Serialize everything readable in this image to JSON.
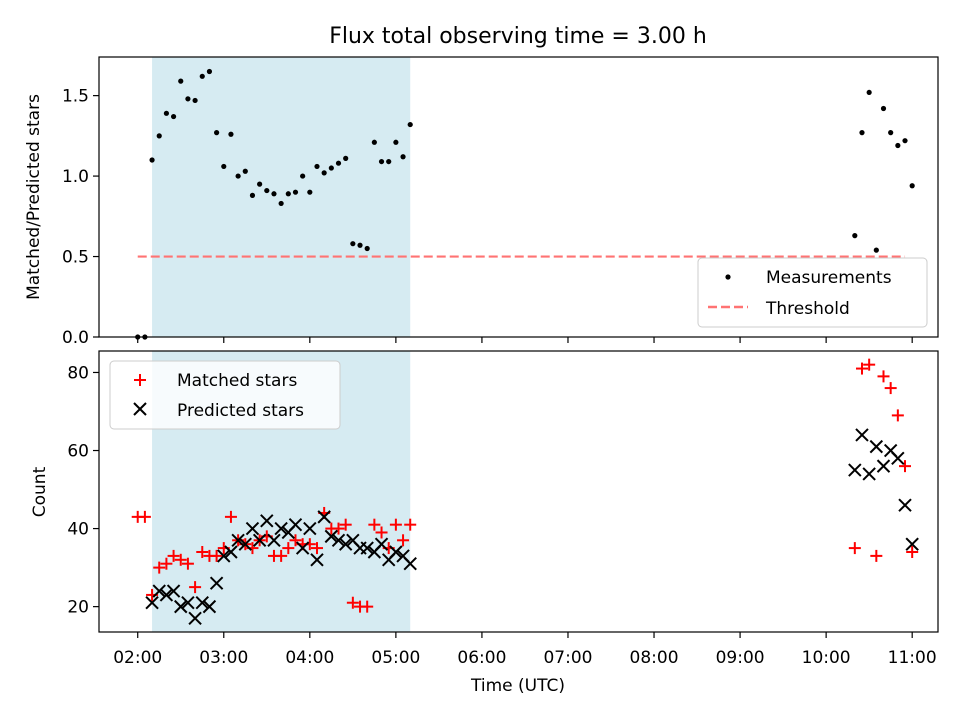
{
  "figure": {
    "title": "Flux total observing time = 3.00 h"
  },
  "chart_data": [
    {
      "type": "scatter",
      "title": "Flux total observing time = 3.00 h",
      "xlabel": "",
      "ylabel": "Matched/Predicted stars",
      "xlim": [
        "01:33",
        "11:18"
      ],
      "ylim": [
        0,
        1.74
      ],
      "yticks": [
        "0.0",
        "0.5",
        "1.0",
        "1.5"
      ],
      "shaded_span": [
        "02:10",
        "05:10"
      ],
      "legend_position": "lower right",
      "series": [
        {
          "name": "Measurements",
          "marker": "dot",
          "color": "#000000",
          "points": [
            [
              "02:00",
              0.0
            ],
            [
              "02:05",
              0.0
            ],
            [
              "02:10",
              1.1
            ],
            [
              "02:15",
              1.25
            ],
            [
              "02:20",
              1.39
            ],
            [
              "02:25",
              1.37
            ],
            [
              "02:30",
              1.59
            ],
            [
              "02:35",
              1.48
            ],
            [
              "02:40",
              1.47
            ],
            [
              "02:45",
              1.62
            ],
            [
              "02:50",
              1.65
            ],
            [
              "02:55",
              1.27
            ],
            [
              "03:00",
              1.06
            ],
            [
              "03:05",
              1.26
            ],
            [
              "03:10",
              1.0
            ],
            [
              "03:15",
              1.03
            ],
            [
              "03:20",
              0.88
            ],
            [
              "03:25",
              0.95
            ],
            [
              "03:30",
              0.91
            ],
            [
              "03:35",
              0.89
            ],
            [
              "03:40",
              0.83
            ],
            [
              "03:45",
              0.89
            ],
            [
              "03:50",
              0.9
            ],
            [
              "03:55",
              1.0
            ],
            [
              "04:00",
              0.9
            ],
            [
              "04:05",
              1.06
            ],
            [
              "04:10",
              1.02
            ],
            [
              "04:15",
              1.05
            ],
            [
              "04:20",
              1.08
            ],
            [
              "04:25",
              1.11
            ],
            [
              "04:30",
              0.58
            ],
            [
              "04:35",
              0.57
            ],
            [
              "04:40",
              0.55
            ],
            [
              "04:45",
              1.21
            ],
            [
              "04:50",
              1.09
            ],
            [
              "04:55",
              1.09
            ],
            [
              "05:00",
              1.21
            ],
            [
              "05:05",
              1.12
            ],
            [
              "05:10",
              1.32
            ],
            [
              "10:20",
              0.63
            ],
            [
              "10:25",
              1.27
            ],
            [
              "10:30",
              1.52
            ],
            [
              "10:35",
              0.54
            ],
            [
              "10:40",
              1.42
            ],
            [
              "10:45",
              1.27
            ],
            [
              "10:50",
              1.19
            ],
            [
              "10:55",
              1.22
            ],
            [
              "11:00",
              0.94
            ]
          ]
        },
        {
          "name": "Threshold",
          "line": "dashed",
          "color": "#ff7373",
          "points": [
            [
              "02:00",
              0.5
            ],
            [
              "10:55",
              0.5
            ]
          ]
        }
      ]
    },
    {
      "type": "scatter",
      "xlabel": "Time (UTC)",
      "ylabel": "Count",
      "xlim": [
        "01:33",
        "11:18"
      ],
      "ylim": [
        13.5,
        85.5
      ],
      "yticks": [
        "20",
        "40",
        "60",
        "80"
      ],
      "xticks": [
        "02:00",
        "03:00",
        "04:00",
        "05:00",
        "06:00",
        "07:00",
        "08:00",
        "09:00",
        "10:00",
        "11:00"
      ],
      "shaded_span": [
        "02:10",
        "05:10"
      ],
      "legend_position": "upper left",
      "series": [
        {
          "name": "Matched stars",
          "marker": "plus",
          "color": "#ff0000",
          "points": [
            [
              "02:00",
              43
            ],
            [
              "02:05",
              43
            ],
            [
              "02:10",
              23
            ],
            [
              "02:15",
              30
            ],
            [
              "02:20",
              31
            ],
            [
              "02:25",
              33
            ],
            [
              "02:30",
              32
            ],
            [
              "02:35",
              31
            ],
            [
              "02:40",
              25
            ],
            [
              "02:45",
              34
            ],
            [
              "02:50",
              33
            ],
            [
              "02:55",
              33
            ],
            [
              "03:00",
              35
            ],
            [
              "03:05",
              43
            ],
            [
              "03:10",
              37
            ],
            [
              "03:15",
              36
            ],
            [
              "03:20",
              35
            ],
            [
              "03:25",
              37
            ],
            [
              "03:30",
              38
            ],
            [
              "03:35",
              33
            ],
            [
              "03:40",
              33
            ],
            [
              "03:45",
              35
            ],
            [
              "03:50",
              37
            ],
            [
              "03:55",
              36
            ],
            [
              "04:00",
              36
            ],
            [
              "04:05",
              35
            ],
            [
              "04:10",
              44
            ],
            [
              "04:15",
              40
            ],
            [
              "04:20",
              40
            ],
            [
              "04:25",
              41
            ],
            [
              "04:30",
              21
            ],
            [
              "04:35",
              20
            ],
            [
              "04:40",
              20
            ],
            [
              "04:45",
              41
            ],
            [
              "04:50",
              39
            ],
            [
              "04:55",
              35
            ],
            [
              "05:00",
              41
            ],
            [
              "05:05",
              37
            ],
            [
              "05:10",
              41
            ],
            [
              "10:20",
              35
            ],
            [
              "10:25",
              81
            ],
            [
              "10:30",
              82
            ],
            [
              "10:35",
              33
            ],
            [
              "10:40",
              79
            ],
            [
              "10:45",
              76
            ],
            [
              "10:50",
              69
            ],
            [
              "10:55",
              56
            ],
            [
              "11:00",
              34
            ]
          ]
        },
        {
          "name": "Predicted stars",
          "marker": "x",
          "color": "#000000",
          "points": [
            [
              "02:10",
              21
            ],
            [
              "02:15",
              24
            ],
            [
              "02:20",
              23
            ],
            [
              "02:25",
              24
            ],
            [
              "02:30",
              20
            ],
            [
              "02:35",
              21
            ],
            [
              "02:40",
              17
            ],
            [
              "02:45",
              21
            ],
            [
              "02:50",
              20
            ],
            [
              "02:55",
              26
            ],
            [
              "03:00",
              33
            ],
            [
              "03:05",
              34
            ],
            [
              "03:10",
              37
            ],
            [
              "03:15",
              36
            ],
            [
              "03:20",
              40
            ],
            [
              "03:25",
              37
            ],
            [
              "03:30",
              42
            ],
            [
              "03:35",
              37
            ],
            [
              "03:40",
              40
            ],
            [
              "03:45",
              39
            ],
            [
              "03:50",
              41
            ],
            [
              "03:55",
              35
            ],
            [
              "04:00",
              40
            ],
            [
              "04:05",
              32
            ],
            [
              "04:10",
              43
            ],
            [
              "04:15",
              38
            ],
            [
              "04:20",
              37
            ],
            [
              "04:25",
              36
            ],
            [
              "04:30",
              37
            ],
            [
              "04:35",
              35
            ],
            [
              "04:40",
              35
            ],
            [
              "04:45",
              34
            ],
            [
              "04:50",
              36
            ],
            [
              "04:55",
              32
            ],
            [
              "05:00",
              34
            ],
            [
              "05:05",
              33
            ],
            [
              "05:10",
              31
            ],
            [
              "10:20",
              55
            ],
            [
              "10:25",
              64
            ],
            [
              "10:30",
              54
            ],
            [
              "10:35",
              61
            ],
            [
              "10:40",
              56
            ],
            [
              "10:45",
              60
            ],
            [
              "10:50",
              58
            ],
            [
              "10:55",
              46
            ],
            [
              "11:00",
              36
            ]
          ]
        }
      ]
    }
  ]
}
